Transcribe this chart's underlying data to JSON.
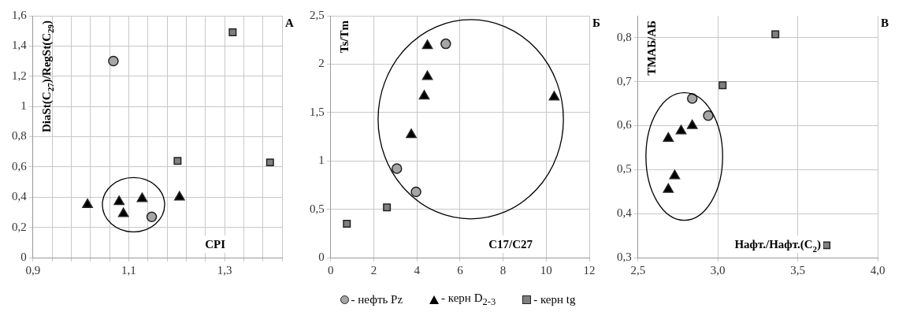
{
  "chart_data": [
    {
      "type": "scatter",
      "xlabel": "CPI",
      "ylabel": "DiaSt(C$_{27}$)/RegSt(C$_{29}$)",
      "annotations": [
        "А"
      ],
      "grid": true,
      "xlim": [
        0.9,
        1.42
      ],
      "xticks": [
        {
          "value": 0.9,
          "label": "0,9"
        },
        {
          "value": 0.94,
          "label": null
        },
        {
          "value": 0.98,
          "label": null
        },
        {
          "value": 1.02,
          "label": null
        },
        {
          "value": 1.06,
          "label": null
        },
        {
          "value": 1.1,
          "label": "1,1"
        },
        {
          "value": 1.14,
          "label": null
        },
        {
          "value": 1.18,
          "label": null
        },
        {
          "value": 1.22,
          "label": null
        },
        {
          "value": 1.26,
          "label": null
        },
        {
          "value": 1.3,
          "label": "1,3"
        },
        {
          "value": 1.34,
          "label": null
        },
        {
          "value": 1.38,
          "label": null
        },
        {
          "value": 1.42,
          "label": null
        }
      ],
      "ylim": [
        0,
        1.6
      ],
      "yticks": [
        0,
        {
          "value": 0.2,
          "label": "0,2"
        },
        {
          "value": 0.4,
          "label": "0,4"
        },
        {
          "value": 0.6,
          "label": "0,6"
        },
        {
          "value": 0.8,
          "label": "0,8"
        },
        1,
        {
          "value": 1.2,
          "label": "1,2"
        },
        {
          "value": 1.4,
          "label": "1,4"
        },
        {
          "value": 1.6,
          "label": "1,6"
        }
      ],
      "series": [
        {
          "color": "#a6a6a6",
          "marker": "circle",
          "x": [
            1.068,
            1.148
          ],
          "values": [
            1.3,
            0.27
          ]
        },
        {
          "color": "#000000",
          "marker": "triangle",
          "x": [
            1.014,
            1.08,
            1.089,
            1.128,
            1.206
          ],
          "values": [
            0.35,
            0.37,
            0.29,
            0.39,
            0.4
          ]
        },
        {
          "color": "#808080",
          "marker": "square",
          "x": [
            1.317,
            1.202,
            1.395
          ],
          "values": [
            1.49,
            0.64,
            0.63
          ]
        }
      ]
    },
    {
      "type": "scatter",
      "xlabel": "C17/C27",
      "ylabel": "Ts/Tm",
      "annotations": [
        "Б"
      ],
      "grid": true,
      "legend": "bottom",
      "xlim": [
        0,
        12
      ],
      "xticks": [
        0,
        2,
        4,
        6,
        8,
        10,
        12
      ],
      "ylim": [
        0,
        2.5
      ],
      "yticks": [
        0,
        {
          "value": 0.5,
          "label": "0,5"
        },
        1,
        {
          "value": 1.5,
          "label": "1,5"
        },
        2,
        {
          "value": 2.5,
          "label": "2,5"
        }
      ],
      "series": [
        {
          "name": "- нефть Pz",
          "color": "#a6a6a6",
          "marker": "circle",
          "x": [
            5.34,
            3.07,
            3.96
          ],
          "values": [
            2.21,
            0.92,
            0.68
          ]
        },
        {
          "name": "- керн D$_{2-3}$",
          "color": "#000000",
          "marker": "triangle",
          "x": [
            4.49,
            4.49,
            4.34,
            3.74,
            10.37
          ],
          "values": [
            2.19,
            1.87,
            1.67,
            1.27,
            1.66
          ]
        },
        {
          "name": "- керн tg",
          "color": "#808080",
          "marker": "square",
          "x": [
            0.75,
            2.61
          ],
          "values": [
            0.35,
            0.52
          ]
        }
      ]
    },
    {
      "type": "scatter",
      "xlabel": "Нафт./Нафт.(C$_{2}$)",
      "ylabel": "ТМАБ/АБ",
      "annotations": [
        "В"
      ],
      "grid": true,
      "xlim": [
        2.5,
        4.0
      ],
      "xticks": [
        {
          "value": 2.5,
          "label": "2,5"
        },
        {
          "value": 3.0,
          "label": "3,0"
        },
        {
          "value": 3.5,
          "label": "3,5"
        },
        {
          "value": 4.0,
          "label": "4,0"
        }
      ],
      "ylim": [
        0.3,
        0.85
      ],
      "yticks": [
        {
          "value": 0.3,
          "label": "0,3"
        },
        {
          "value": 0.4,
          "label": "0,4"
        },
        {
          "value": 0.5,
          "label": "0,5"
        },
        {
          "value": 0.6,
          "label": "0,6"
        },
        {
          "value": 0.7,
          "label": "0,7"
        },
        {
          "value": 0.8,
          "label": "0,8"
        }
      ],
      "series": [
        {
          "color": "#a6a6a6",
          "marker": "circle",
          "x": [
            2.84,
            2.94
          ],
          "values": [
            0.662,
            0.623
          ]
        },
        {
          "color": "#000000",
          "marker": "triangle",
          "x": [
            2.69,
            2.77,
            2.84,
            2.73,
            2.69
          ],
          "values": [
            0.571,
            0.588,
            0.6,
            0.486,
            0.455
          ]
        },
        {
          "color": "#808080",
          "marker": "square",
          "x": [
            3.36,
            3.03,
            3.68
          ],
          "values": [
            0.808,
            0.692,
            0.328
          ]
        }
      ]
    }
  ]
}
